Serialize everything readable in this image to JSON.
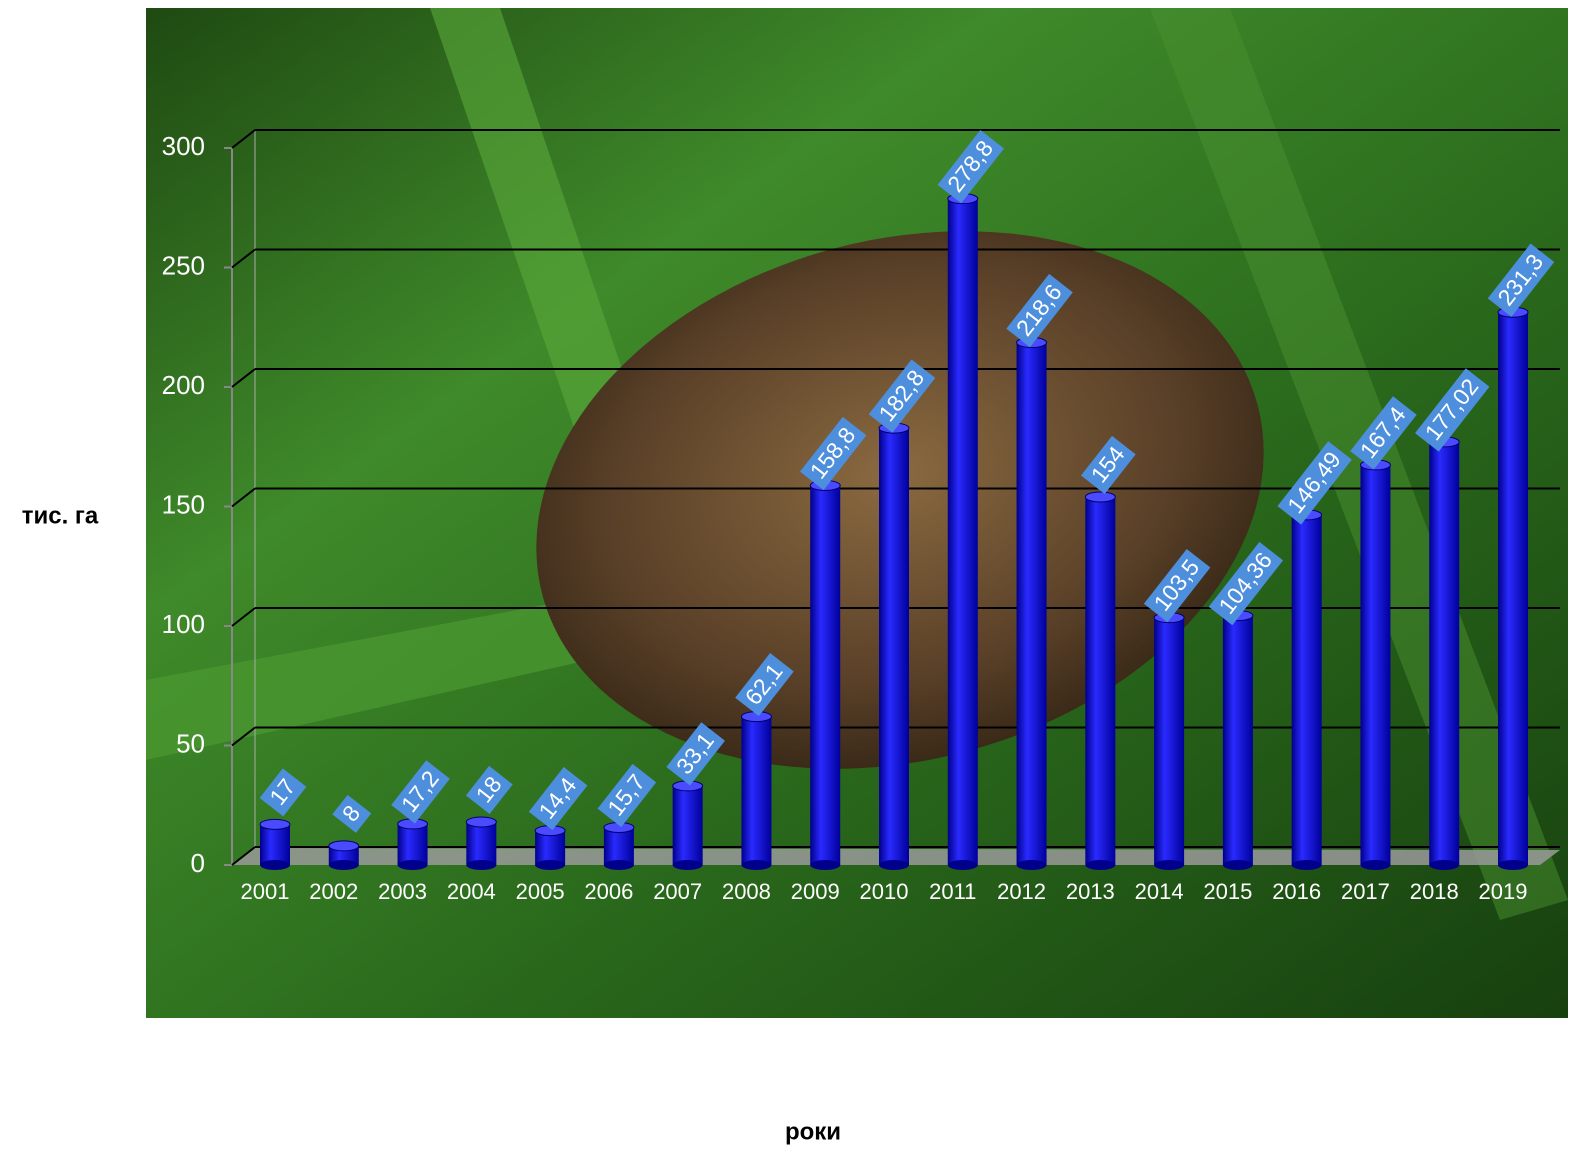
{
  "chart_data": {
    "type": "bar",
    "y_label": "тис. га",
    "x_label": "роки",
    "categories": [
      "2001",
      "2002",
      "2003",
      "2004",
      "2005",
      "2006",
      "2007",
      "2008",
      "2009",
      "2010",
      "2011",
      "2012",
      "2013",
      "2014",
      "2015",
      "2016",
      "2017",
      "2018",
      "2019"
    ],
    "values": [
      17,
      8,
      17.2,
      18,
      14.4,
      15.7,
      33.1,
      62.1,
      158.8,
      182.8,
      278.8,
      218.6,
      154,
      103.5,
      104.36,
      146.49,
      167.4,
      177.02,
      231.3
    ],
    "value_labels": [
      "17",
      "8",
      "17,2",
      "18",
      "14,4",
      "15,7",
      "33,1",
      "62,1",
      "158,8",
      "182,8",
      "278,8",
      "218,6",
      "154",
      "103,5",
      "104,36",
      "146,49",
      "167,4",
      "177,02",
      "231,3"
    ],
    "color": "#0000ff",
    "ylim": [
      0,
      300
    ],
    "yticks": [
      0,
      50,
      100,
      150,
      200,
      250,
      300
    ],
    "grid": true
  }
}
